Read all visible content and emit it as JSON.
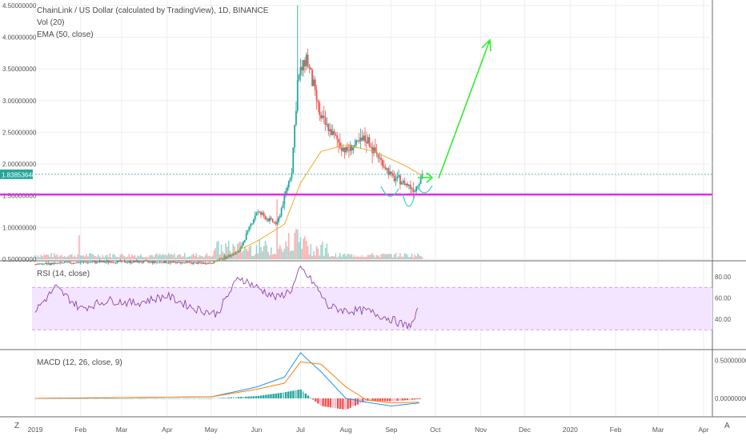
{
  "header": {
    "title": "ChainLink / US Dollar (calculated by TradingView), 1D, BINANCE",
    "vol_label": "Vol (20)",
    "ema_label": "EMA (50, close)"
  },
  "price_tag": "1.83853648",
  "rsi_label": "RSI (14, close)",
  "macd_label": "MACD (12, 26, close, 9)",
  "bottom_left_button": "Z",
  "bottom_right_button": "A",
  "colors": {
    "up": "#26a69a",
    "down": "#ef5350",
    "ema": "#f5a623",
    "support_line": "#e030e0",
    "rsi": "#8e44ad",
    "rsi_band": "#f3e5ff",
    "macd": "#2196f3",
    "signal": "#ff7f0e",
    "projection_arrow": "#22ee22",
    "pattern_curve": "#33cccc",
    "price_line": "#26a69a"
  },
  "chart_data": [
    {
      "type": "candlestick",
      "title": "ChainLink / US Dollar (calculated by TradingView), 1D, BINANCE",
      "x_ticks": [
        "2019",
        "Feb",
        "Mar",
        "Apr",
        "May",
        "Jun",
        "Jul",
        "Aug",
        "Sep",
        "Oct",
        "Nov",
        "Dec",
        "2020",
        "Feb",
        "Mar",
        "Apr"
      ],
      "y_ticks": [
        "4.50000000",
        "4.00000000",
        "3.50000000",
        "3.00000000",
        "2.50000000",
        "2.00000000",
        "1.50000000",
        "1.00000000",
        "0.50000000"
      ],
      "y_range": [
        0.5,
        4.5
      ],
      "last_price": 1.83853648,
      "support_level": 1.52,
      "series": [
        {
          "name": "Price",
          "x": [
            "2019-01-01",
            "2019-02-01",
            "2019-03-01",
            "2019-04-01",
            "2019-05-01",
            "2019-05-20",
            "2019-06-01",
            "2019-06-15",
            "2019-06-25",
            "2019-06-29",
            "2019-07-05",
            "2019-07-15",
            "2019-08-01",
            "2019-08-15",
            "2019-09-01",
            "2019-09-10",
            "2019-09-17",
            "2019-09-22"
          ],
          "y": [
            0.42,
            0.45,
            0.46,
            0.45,
            0.44,
            0.62,
            1.25,
            1.05,
            1.9,
            3.3,
            3.7,
            2.7,
            2.2,
            2.4,
            1.8,
            1.7,
            1.6,
            1.84
          ]
        },
        {
          "name": "EMA (50, close)",
          "x": [
            "2019-05-01",
            "2019-06-01",
            "2019-06-20",
            "2019-07-01",
            "2019-07-15",
            "2019-08-01",
            "2019-08-20",
            "2019-09-10",
            "2019-09-22"
          ],
          "y": [
            0.43,
            0.78,
            1.05,
            1.7,
            2.2,
            2.3,
            2.2,
            1.98,
            1.82
          ]
        }
      ],
      "annotations": [
        "projection arrow up to ~3.95 by mid-Oct",
        "inverse head-and-shoulders curve near 1.45"
      ]
    },
    {
      "type": "line",
      "title": "RSI (14, close)",
      "y_ticks": [
        "80.00",
        "60.00",
        "40.00"
      ],
      "y_range": [
        30,
        90
      ],
      "bands": [
        30,
        70
      ],
      "series": [
        {
          "name": "RSI",
          "x": [
            "2019-01-01",
            "2019-01-15",
            "2019-02-01",
            "2019-02-20",
            "2019-03-10",
            "2019-04-01",
            "2019-04-20",
            "2019-05-05",
            "2019-05-20",
            "2019-06-01",
            "2019-06-15",
            "2019-06-25",
            "2019-07-01",
            "2019-07-10",
            "2019-07-20",
            "2019-08-01",
            "2019-08-15",
            "2019-09-01",
            "2019-09-10",
            "2019-09-15",
            "2019-09-20"
          ],
          "y": [
            48,
            70,
            50,
            58,
            55,
            62,
            50,
            45,
            80,
            70,
            60,
            68,
            88,
            74,
            52,
            48,
            48,
            40,
            34,
            35,
            50
          ]
        }
      ]
    },
    {
      "type": "line",
      "title": "MACD (12, 26, close, 9)",
      "y_ticks": [
        "0.50000000",
        "0.00000000"
      ],
      "y_range": [
        -0.2,
        0.65
      ],
      "series": [
        {
          "name": "MACD",
          "x": [
            "2019-01-01",
            "2019-03-01",
            "2019-05-01",
            "2019-06-01",
            "2019-06-20",
            "2019-07-01",
            "2019-07-15",
            "2019-08-01",
            "2019-08-15",
            "2019-09-01",
            "2019-09-20"
          ],
          "y": [
            0.0,
            0.01,
            0.02,
            0.15,
            0.28,
            0.6,
            0.35,
            0.0,
            -0.05,
            -0.1,
            -0.06
          ]
        },
        {
          "name": "Signal",
          "x": [
            "2019-01-01",
            "2019-03-01",
            "2019-05-01",
            "2019-06-01",
            "2019-06-20",
            "2019-07-01",
            "2019-07-15",
            "2019-08-01",
            "2019-08-15",
            "2019-09-01",
            "2019-09-20"
          ],
          "y": [
            0.0,
            0.01,
            0.02,
            0.12,
            0.2,
            0.48,
            0.45,
            0.15,
            -0.02,
            -0.06,
            -0.05
          ]
        }
      ]
    }
  ]
}
